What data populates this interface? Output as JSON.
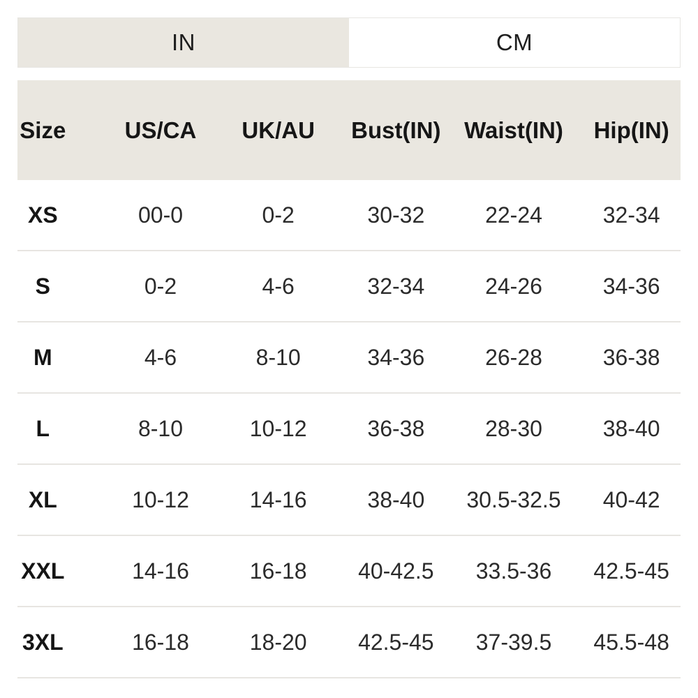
{
  "unit_toggle": {
    "tabs": [
      {
        "label": "IN",
        "selected": true
      },
      {
        "label": "CM",
        "selected": false
      }
    ]
  },
  "size_chart": {
    "selected_unit": "IN",
    "headers": [
      "Size",
      "US/CA",
      "UK/AU",
      "Bust(IN)",
      "Waist(IN)",
      "Hip(IN)"
    ],
    "rows": [
      {
        "cells": [
          "XS",
          "00-0",
          "0-2",
          "30-32",
          "22-24",
          "32-34"
        ]
      },
      {
        "cells": [
          "S",
          "0-2",
          "4-6",
          "32-34",
          "24-26",
          "34-36"
        ]
      },
      {
        "cells": [
          "M",
          "4-6",
          "8-10",
          "34-36",
          "26-28",
          "36-38"
        ]
      },
      {
        "cells": [
          "L",
          "8-10",
          "10-12",
          "36-38",
          "28-30",
          "38-40"
        ]
      },
      {
        "cells": [
          "XL",
          "10-12",
          "14-16",
          "38-40",
          "30.5-32.5",
          "40-42"
        ]
      },
      {
        "cells": [
          "XXL",
          "14-16",
          "16-18",
          "40-42.5",
          "33.5-36",
          "42.5-45"
        ]
      },
      {
        "cells": [
          "3XL",
          "16-18",
          "18-20",
          "42.5-45",
          "37-39.5",
          "45.5-48"
        ]
      }
    ]
  },
  "colors": {
    "selected_tab_background": "#eae7e0",
    "header_background": "#eae7e0",
    "row_divider": "#e7e5e1",
    "text": "#1c1c1c"
  }
}
